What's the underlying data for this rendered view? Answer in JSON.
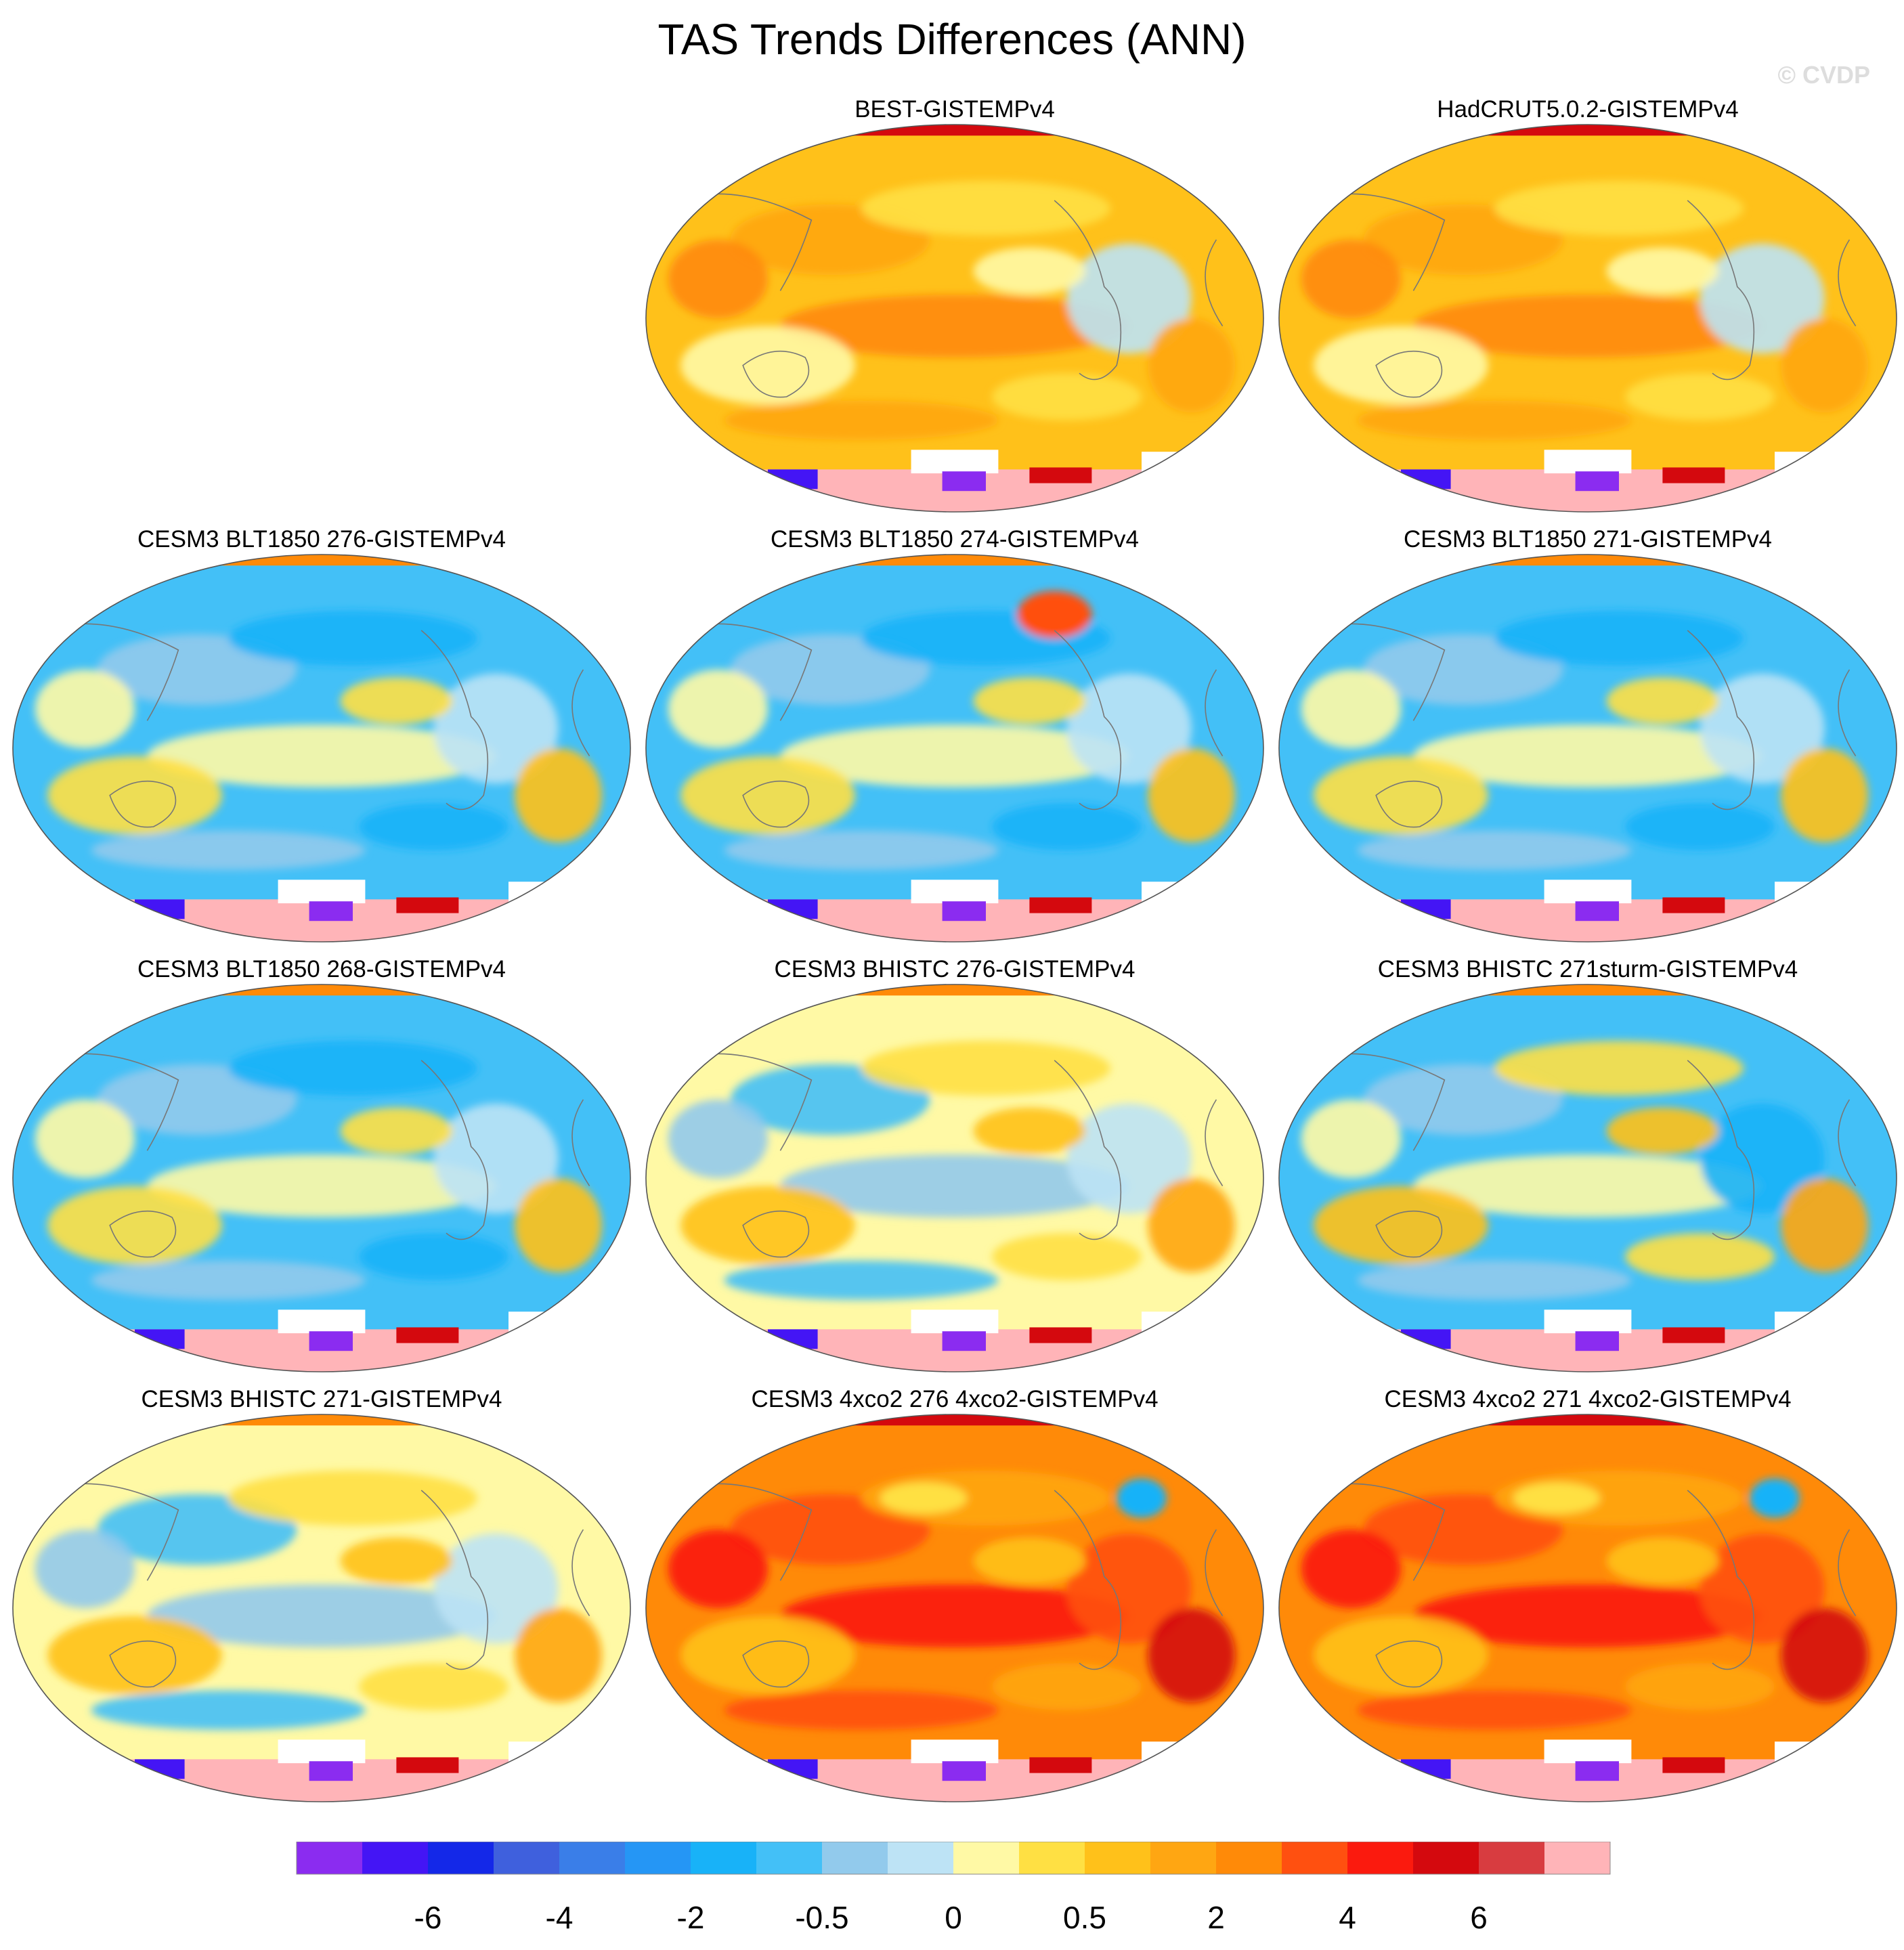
{
  "title": "TAS Trends Differences (ANN)",
  "watermark": "© CVDP",
  "chart_data": {
    "type": "heatmap",
    "title": "TAS Trends Differences (ANN)",
    "projection": "Robinson (global map)",
    "variable": "TAS",
    "season": "ANN",
    "colorbar": {
      "colors": [
        "#8b2cf0",
        "#4415f5",
        "#1428e8",
        "#3f60dd",
        "#3a7ee8",
        "#2596f5",
        "#18b2f8",
        "#43c0f7",
        "#92caec",
        "#bde3f5",
        "#fff9a5",
        "#ffe043",
        "#ffc11a",
        "#ffa612",
        "#ff8a08",
        "#ff5010",
        "#fb1a0e",
        "#d4090e",
        "#d83c40",
        "#ffb4b8"
      ],
      "tick_labels": [
        "-6",
        "-4",
        "-2",
        "-0.5",
        "0",
        "0.5",
        "2",
        "4",
        "6"
      ]
    },
    "panels": [
      {
        "title": "BEST-GISTEMPv4",
        "row": 0,
        "col": 1,
        "tone": "warm",
        "accent": ""
      },
      {
        "title": "HadCRUT5.0.2-GISTEMPv4",
        "row": 0,
        "col": 2,
        "tone": "warm",
        "accent": ""
      },
      {
        "title": "CESM3 BLT1850 276-GISTEMPv4",
        "row": 1,
        "col": 0,
        "tone": "cool",
        "accent": ""
      },
      {
        "title": "CESM3 BLT1850 274-GISTEMPv4",
        "row": 1,
        "col": 1,
        "tone": "cool",
        "accent": "northeast-warm"
      },
      {
        "title": "CESM3 BLT1850 271-GISTEMPv4",
        "row": 1,
        "col": 2,
        "tone": "cool",
        "accent": ""
      },
      {
        "title": "CESM3 BLT1850 268-GISTEMPv4",
        "row": 2,
        "col": 0,
        "tone": "cool",
        "accent": ""
      },
      {
        "title": "CESM3 BHISTC 276-GISTEMPv4",
        "row": 2,
        "col": 1,
        "tone": "mixed",
        "accent": ""
      },
      {
        "title": "CESM3 BHISTC 271sturm-GISTEMPv4",
        "row": 2,
        "col": 2,
        "tone": "mixed-cool",
        "accent": ""
      },
      {
        "title": "CESM3 BHISTC 271-GISTEMPv4",
        "row": 3,
        "col": 0,
        "tone": "mixed",
        "accent": ""
      },
      {
        "title": "CESM3 4xco2 276 4xco2-GISTEMPv4",
        "row": 3,
        "col": 1,
        "tone": "hot",
        "accent": "north-atlantic-cool"
      },
      {
        "title": "CESM3 4xco2 271 4xco2-GISTEMPv4",
        "row": 3,
        "col": 2,
        "tone": "hot",
        "accent": "north-atlantic-cool"
      }
    ]
  }
}
